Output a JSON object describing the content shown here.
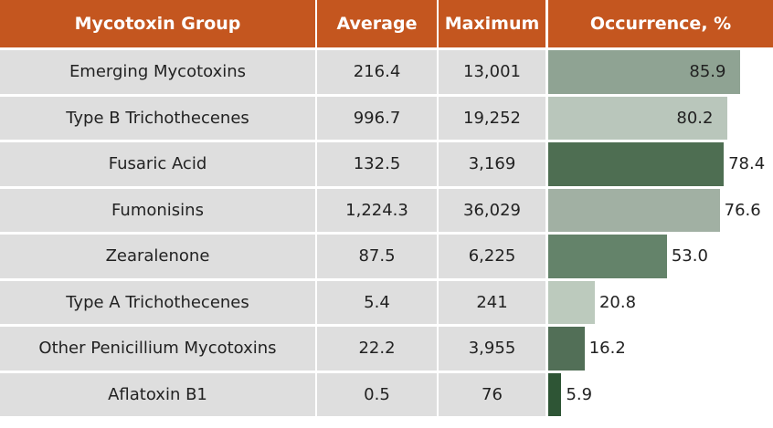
{
  "table": {
    "columns": [
      "Mycotoxin Group",
      "Average",
      "Maximum",
      "Occurrence, %"
    ],
    "rows": [
      {
        "group": "Emerging Mycotoxins",
        "average": "216.4",
        "maximum": "13,001",
        "occurrence": 85.9,
        "occurrence_label": "85.9",
        "color": "#8fa393"
      },
      {
        "group": "Type B Trichothecenes",
        "average": "996.7",
        "maximum": "19,252",
        "occurrence": 80.2,
        "occurrence_label": "80.2",
        "color": "#b9c6bb"
      },
      {
        "group": "Fusaric Acid",
        "average": "132.5",
        "maximum": "3,169",
        "occurrence": 78.4,
        "occurrence_label": "78.4",
        "color": "#4e6e52"
      },
      {
        "group": "Fumonisins",
        "average": "1,224.3",
        "maximum": "36,029",
        "occurrence": 76.6,
        "occurrence_label": "76.6",
        "color": "#a1b0a3"
      },
      {
        "group": "Zearalenone",
        "average": "87.5",
        "maximum": "6,225",
        "occurrence": 53.0,
        "occurrence_label": "53.0",
        "color": "#64836a"
      },
      {
        "group": "Type A Trichothecenes",
        "average": "5.4",
        "maximum": "241",
        "occurrence": 20.8,
        "occurrence_label": "20.8",
        "color": "#bccabd"
      },
      {
        "group": "Other Penicillium Mycotoxins",
        "average": "22.2",
        "maximum": "3,955",
        "occurrence": 16.2,
        "occurrence_label": "16.2",
        "color": "#526f57"
      },
      {
        "group": "Aflatoxin B1",
        "average": "0.5",
        "maximum": "76",
        "occurrence": 5.9,
        "occurrence_label": "5.9",
        "color": "#2e5535"
      }
    ]
  }
}
